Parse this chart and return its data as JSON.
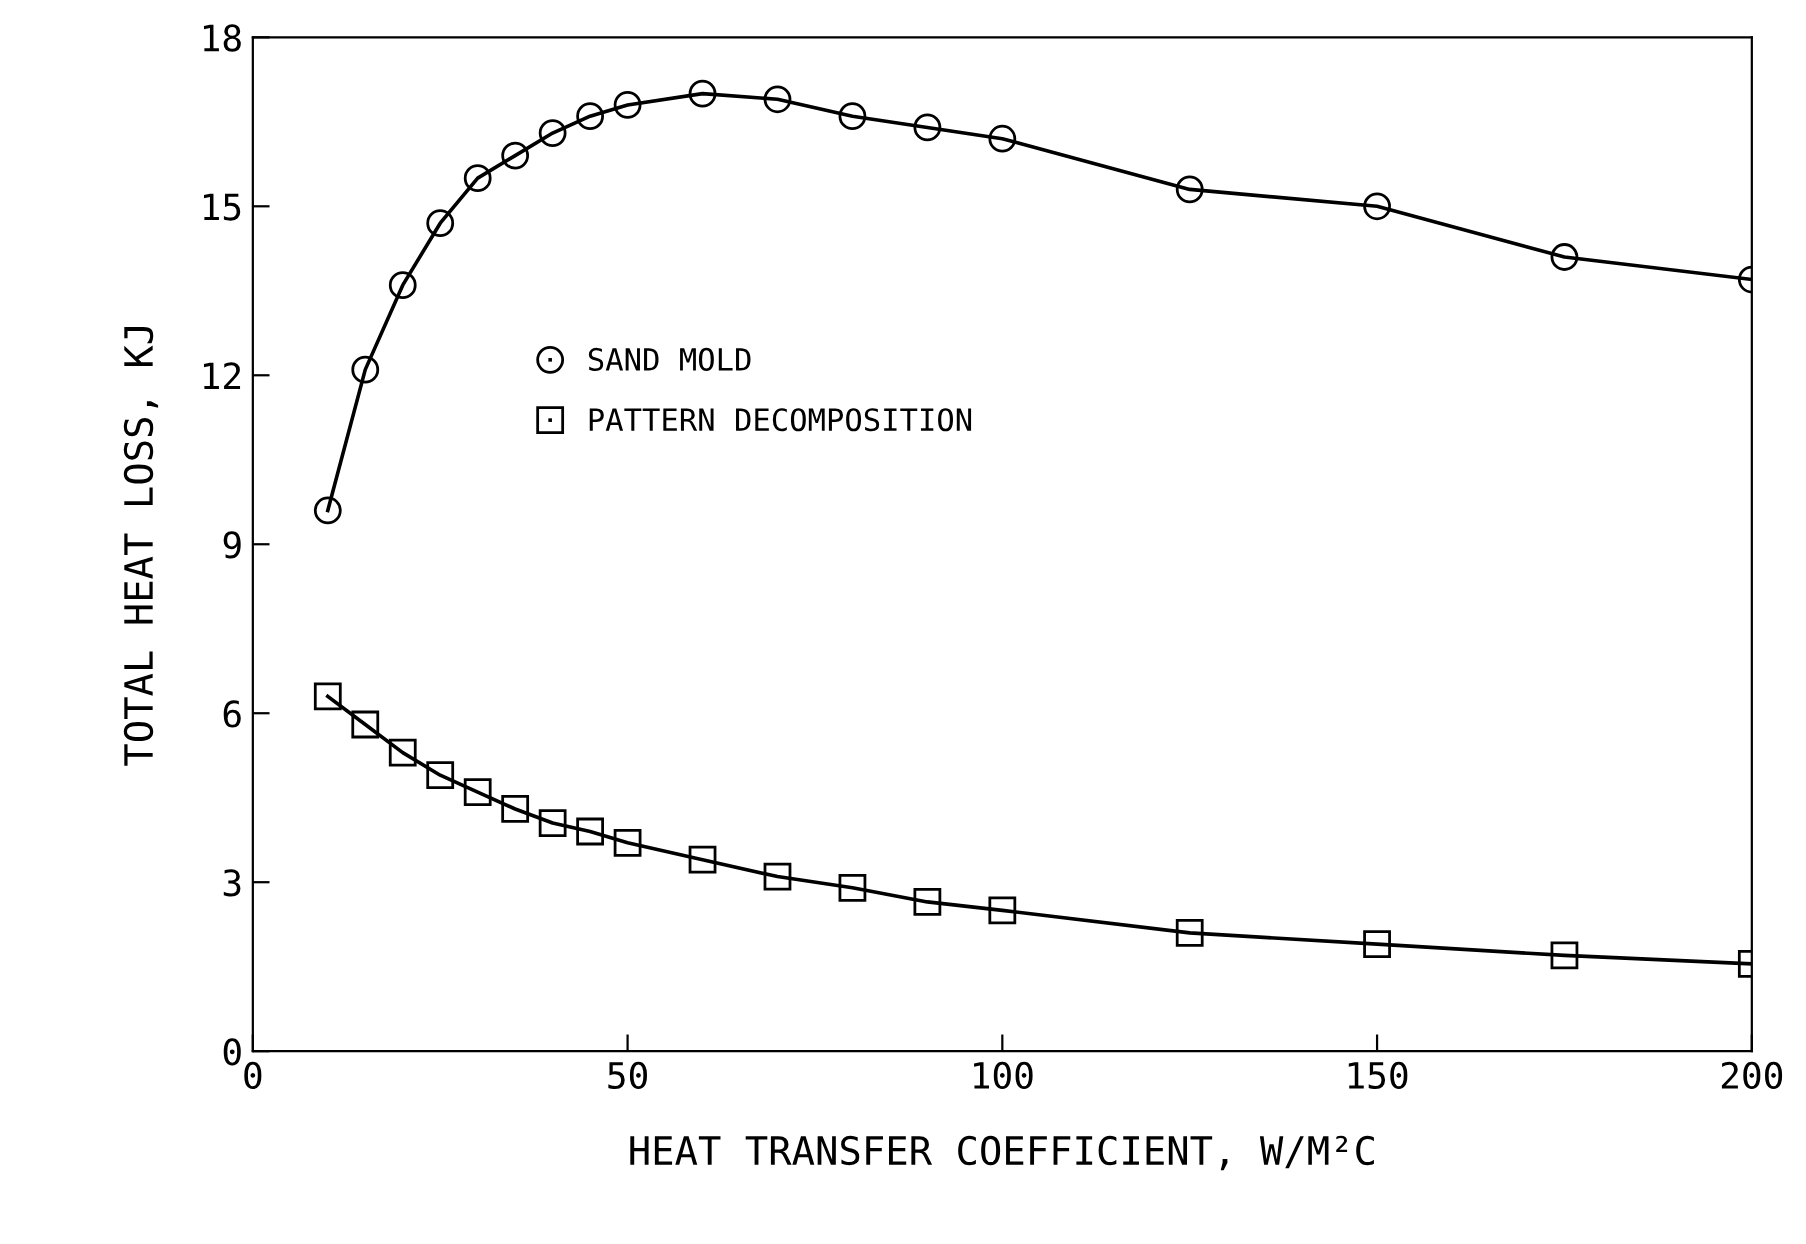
{
  "chart_data": {
    "type": "line",
    "xlabel": "HEAT TRANSFER COEFFICIENT, W/M²C",
    "ylabel": "TOTAL HEAT LOSS, KJ",
    "x": [
      10,
      15,
      20,
      25,
      30,
      35,
      40,
      45,
      50,
      60,
      70,
      80,
      90,
      100,
      125,
      150,
      175,
      200
    ],
    "series": [
      {
        "name": "SAND MOLD",
        "color": "#000000",
        "marker": "circle",
        "values": [
          9.6,
          12.1,
          13.6,
          14.7,
          15.5,
          15.9,
          16.3,
          16.6,
          16.8,
          17.0,
          16.9,
          16.6,
          16.4,
          16.2,
          15.3,
          15.0,
          14.1,
          13.7
        ]
      },
      {
        "name": "PATTERN DECOMPOSITION",
        "color": "#000000",
        "marker": "square",
        "values": [
          6.3,
          5.8,
          5.3,
          4.9,
          4.6,
          4.3,
          4.05,
          3.9,
          3.7,
          3.4,
          3.1,
          2.9,
          2.65,
          2.5,
          2.1,
          1.9,
          1.7,
          1.55
        ]
      }
    ],
    "xlim": [
      0,
      200
    ],
    "xticks": [
      0,
      50,
      100,
      150,
      200
    ],
    "ylim": [
      0,
      18
    ],
    "yticks": [
      0,
      3,
      6,
      9,
      12,
      15,
      18
    ],
    "line_style": "solid",
    "grid": false,
    "legend": "left"
  }
}
